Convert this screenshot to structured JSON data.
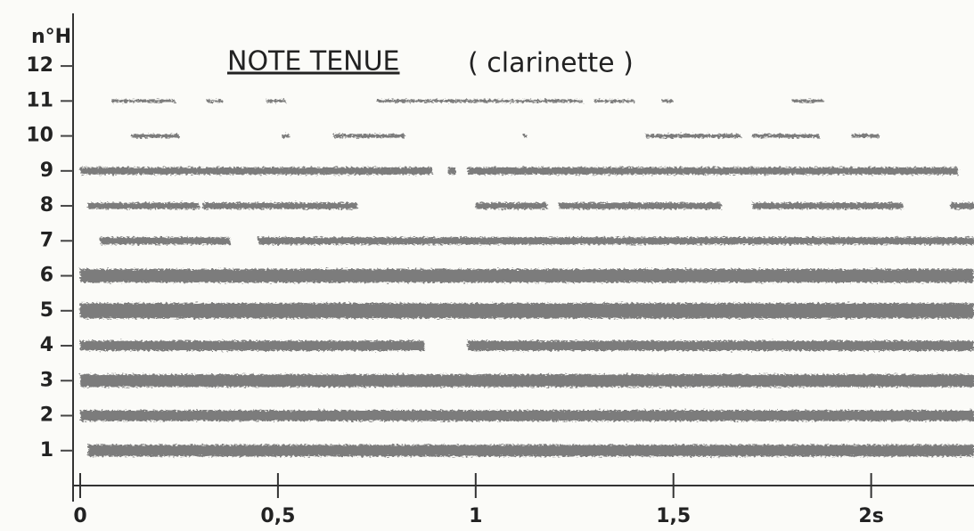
{
  "chart_data": {
    "type": "segments",
    "title": "NOTE TENUE",
    "subtitle": "( clarinette )",
    "y_label": "n°H",
    "xlim": [
      0,
      2.26
    ],
    "ylim": [
      0,
      13.2
    ],
    "xticks": [
      0,
      {
        "value": 0.5,
        "label": "0,5"
      },
      1,
      {
        "value": 1.5,
        "label": "1,5"
      },
      {
        "value": 2,
        "label": "2s"
      }
    ],
    "yticks": [
      1,
      2,
      3,
      4,
      5,
      6,
      7,
      8,
      9,
      10,
      11,
      12
    ],
    "color": "#6f6f6f",
    "series": [
      {
        "harmonic": 1,
        "segments": [
          [
            0.02,
            2.26
          ]
        ]
      },
      {
        "harmonic": 2,
        "segments": [
          [
            0,
            2.26
          ]
        ]
      },
      {
        "harmonic": 3,
        "segments": [
          [
            0,
            2.26
          ]
        ]
      },
      {
        "harmonic": 4,
        "segments": [
          [
            0,
            0.87
          ],
          [
            0.98,
            2.26
          ]
        ]
      },
      {
        "harmonic": 5,
        "segments": [
          [
            0,
            2.26
          ]
        ]
      },
      {
        "harmonic": 6,
        "segments": [
          [
            0,
            2.26
          ]
        ]
      },
      {
        "harmonic": 7,
        "segments": [
          [
            0.05,
            0.38
          ],
          [
            0.45,
            2.26
          ]
        ]
      },
      {
        "harmonic": 8,
        "segments": [
          [
            0.02,
            0.3
          ],
          [
            0.31,
            0.7
          ],
          [
            1.0,
            1.18
          ],
          [
            1.21,
            1.62
          ],
          [
            1.7,
            2.08
          ],
          [
            2.2,
            2.26
          ]
        ]
      },
      {
        "harmonic": 9,
        "segments": [
          [
            0,
            0.89
          ],
          [
            0.93,
            0.95
          ],
          [
            0.98,
            2.22
          ]
        ]
      },
      {
        "harmonic": 10,
        "segments": [
          [
            0.13,
            0.25
          ],
          [
            0.51,
            0.53
          ],
          [
            0.64,
            0.82
          ],
          [
            1.12,
            1.13
          ],
          [
            1.43,
            1.67
          ],
          [
            1.7,
            1.87
          ],
          [
            1.95,
            2.02
          ]
        ]
      },
      {
        "harmonic": 11,
        "segments": [
          [
            0.08,
            0.24
          ],
          [
            0.32,
            0.36
          ],
          [
            0.47,
            0.52
          ],
          [
            0.75,
            1.27
          ],
          [
            1.3,
            1.4
          ],
          [
            1.47,
            1.5
          ],
          [
            1.8,
            1.88
          ]
        ]
      }
    ]
  }
}
